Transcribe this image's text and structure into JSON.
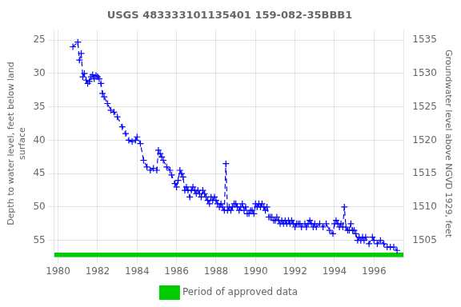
{
  "chart_data": {
    "type": "line",
    "title": "USGS 483333101135401 159-082-35BBB1",
    "ylabel": "Depth to water level, feet below land\nsurface",
    "y2label": "Groundwater level above NGVD 1929, feet",
    "xlim": [
      1979.8,
      1997.5
    ],
    "xticks": [
      1980,
      1982,
      1984,
      1986,
      1988,
      1990,
      1992,
      1994,
      1996
    ],
    "ylim": [
      57.5,
      23.5
    ],
    "yticks": [
      25,
      30,
      35,
      40,
      45,
      50,
      55
    ],
    "y2lim": [
      1502.5,
      1536.5
    ],
    "y2ticks": [
      1505,
      1510,
      1515,
      1520,
      1525,
      1530,
      1535
    ],
    "grid": true,
    "legend": "bottom",
    "x": [
      1980.75,
      1981.0,
      1981.08,
      1981.17,
      1981.25,
      1981.33,
      1981.42,
      1981.5,
      1981.58,
      1981.67,
      1981.75,
      1981.83,
      1981.92,
      1982.0,
      1982.08,
      1982.17,
      1982.25,
      1982.33,
      1982.5,
      1982.67,
      1982.83,
      1983.0,
      1983.25,
      1983.42,
      1983.58,
      1983.75,
      1983.92,
      1984.0,
      1984.17,
      1984.33,
      1984.5,
      1984.67,
      1984.83,
      1985.0,
      1985.08,
      1985.17,
      1985.25,
      1985.33,
      1985.5,
      1985.67,
      1985.75,
      1985.92,
      1986.0,
      1986.08,
      1986.17,
      1986.25,
      1986.33,
      1986.42,
      1986.5,
      1986.58,
      1986.67,
      1986.75,
      1986.83,
      1986.92,
      1987.0,
      1987.08,
      1987.17,
      1987.25,
      1987.33,
      1987.42,
      1987.5,
      1987.58,
      1987.67,
      1987.75,
      1987.83,
      1987.92,
      1988.0,
      1988.08,
      1988.17,
      1988.25,
      1988.33,
      1988.42,
      1988.5,
      1988.58,
      1988.67,
      1988.75,
      1988.83,
      1988.92,
      1989.0,
      1989.08,
      1989.17,
      1989.25,
      1989.33,
      1989.42,
      1989.5,
      1989.58,
      1989.67,
      1989.75,
      1989.83,
      1989.92,
      1990.0,
      1990.08,
      1990.17,
      1990.25,
      1990.33,
      1990.42,
      1990.5,
      1990.58,
      1990.67,
      1990.75,
      1990.83,
      1990.92,
      1991.0,
      1991.08,
      1991.17,
      1991.25,
      1991.33,
      1991.42,
      1991.5,
      1991.58,
      1991.67,
      1991.75,
      1991.83,
      1991.92,
      1992.0,
      1992.08,
      1992.17,
      1992.25,
      1992.33,
      1992.5,
      1992.58,
      1992.67,
      1992.75,
      1992.83,
      1992.92,
      1993.0,
      1993.08,
      1993.25,
      1993.42,
      1993.58,
      1993.75,
      1993.92,
      1994.0,
      1994.08,
      1994.17,
      1994.25,
      1994.33,
      1994.42,
      1994.5,
      1994.58,
      1994.67,
      1994.75,
      1994.83,
      1994.92,
      1995.0,
      1995.08,
      1995.17,
      1995.25,
      1995.33,
      1995.42,
      1995.5,
      1995.58,
      1995.75,
      1995.92,
      1996.0,
      1996.17,
      1996.33,
      1996.5,
      1996.67,
      1996.83,
      1997.0,
      1997.17
    ],
    "series": [
      {
        "color": "#0000FF",
        "marker": "plus",
        "line_style": "dashed",
        "values": [
          26.0,
          25.3,
          28.0,
          27.0,
          30.5,
          30.0,
          31.0,
          31.5,
          31.2,
          30.5,
          30.2,
          30.8,
          30.3,
          30.5,
          30.8,
          31.5,
          33.0,
          33.5,
          34.5,
          35.5,
          35.8,
          36.5,
          38.0,
          39.0,
          40.0,
          40.2,
          40.0,
          39.5,
          40.5,
          43.0,
          44.0,
          44.5,
          44.2,
          44.5,
          41.5,
          42.0,
          42.5,
          43.0,
          44.0,
          44.5,
          45.2,
          46.5,
          47.0,
          46.0,
          44.5,
          45.0,
          45.5,
          47.5,
          47.0,
          47.5,
          48.5,
          47.5,
          47.0,
          47.5,
          48.0,
          47.5,
          48.0,
          48.5,
          47.5,
          48.0,
          48.5,
          49.0,
          49.5,
          48.5,
          49.0,
          48.5,
          49.0,
          49.5,
          50.0,
          49.5,
          50.0,
          50.5,
          43.5,
          50.5,
          50.0,
          50.5,
          50.0,
          49.5,
          49.5,
          50.0,
          50.5,
          50.0,
          49.5,
          50.5,
          50.0,
          51.0,
          51.0,
          50.5,
          50.5,
          51.0,
          49.5,
          50.0,
          49.5,
          50.0,
          49.5,
          50.0,
          50.5,
          50.0,
          51.5,
          51.5,
          51.5,
          52.0,
          52.0,
          51.5,
          52.0,
          52.5,
          52.0,
          52.5,
          52.0,
          52.5,
          52.0,
          52.5,
          52.0,
          52.5,
          53.0,
          52.5,
          52.5,
          52.5,
          53.0,
          52.5,
          53.0,
          52.5,
          52.0,
          52.5,
          53.0,
          52.5,
          53.0,
          52.5,
          53.0,
          52.5,
          53.5,
          54.0,
          52.5,
          52.0,
          52.5,
          53.0,
          52.5,
          53.0,
          50.0,
          53.0,
          53.5,
          53.5,
          52.5,
          53.5,
          53.5,
          54.0,
          55.0,
          54.5,
          55.0,
          54.5,
          55.0,
          54.5,
          55.5,
          54.5,
          55.0,
          55.5,
          55.0,
          55.5,
          56.0,
          56.0,
          56.0,
          56.5
        ]
      },
      {
        "name": "Period of approved data",
        "color": "#00CC00",
        "x": [
          1979.8,
          1997.5
        ],
        "values": [
          57.2,
          57.2
        ]
      }
    ]
  }
}
